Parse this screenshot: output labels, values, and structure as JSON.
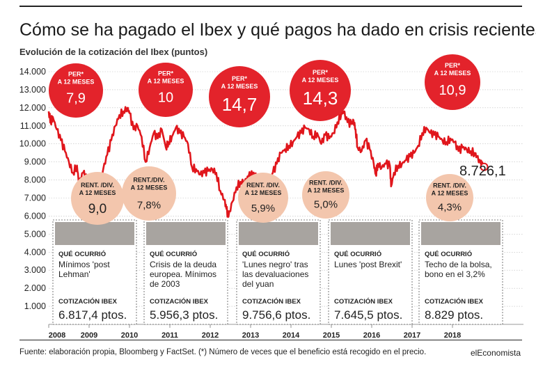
{
  "header": {
    "title": "Cómo se ha pagado el Ibex y qué pagos ha dado en crisis recientes",
    "subtitle": "Evolución de la cotización del Ibex (puntos)"
  },
  "footer": {
    "source": "Fuente: elaboración propia, Bloomberg y FactSet. (*) Número de veces que el beneficio está recogido en el precio.",
    "brand": "elEconomista"
  },
  "colors": {
    "line": "#e0161c",
    "per_bubble": "#e3232b",
    "yield_bubble": "#f3c6ad",
    "panel_header": "#a8a4a0"
  },
  "chart_data": {
    "type": "line",
    "title": "Evolución de la cotización del Ibex (puntos)",
    "ylim": [
      0,
      14000
    ],
    "y_ticks": [
      "14.000",
      "13.000",
      "12.000",
      "11.000",
      "10.000",
      "9.000",
      "8.000",
      "7.000",
      "6.000",
      "5.000",
      "4.000",
      "3.000",
      "2.000",
      "1.000"
    ],
    "y_tick_values": [
      14000,
      13000,
      12000,
      11000,
      10000,
      9000,
      8000,
      7000,
      6000,
      5000,
      4000,
      3000,
      2000,
      1000
    ],
    "x_ticks": [
      "2008",
      "2009",
      "2010",
      "2011",
      "2012",
      "2013",
      "2014",
      "2015",
      "2016",
      "2017",
      "2018"
    ],
    "x_tick_values": [
      2008.0,
      2009.0,
      2010.0,
      2011.0,
      2012.0,
      2013.0,
      2014.0,
      2015.0,
      2016.0,
      2017.0,
      2018.0
    ],
    "series": [
      {
        "values": [
          [
            2008.0,
            11800
          ],
          [
            2008.05,
            11200
          ],
          [
            2008.1,
            11500
          ],
          [
            2008.2,
            10800
          ],
          [
            2008.3,
            10200
          ],
          [
            2008.4,
            9600
          ],
          [
            2008.5,
            9000
          ],
          [
            2008.6,
            8400
          ],
          [
            2008.7,
            8800
          ],
          [
            2008.75,
            7800
          ],
          [
            2008.85,
            8400
          ],
          [
            2008.95,
            8000
          ],
          [
            2009.05,
            7600
          ],
          [
            2009.15,
            6817
          ],
          [
            2009.25,
            7800
          ],
          [
            2009.35,
            8600
          ],
          [
            2009.45,
            9400
          ],
          [
            2009.55,
            10200
          ],
          [
            2009.65,
            11000
          ],
          [
            2009.75,
            11600
          ],
          [
            2009.85,
            11800
          ],
          [
            2009.95,
            12000
          ],
          [
            2010.0,
            11700
          ],
          [
            2010.1,
            10800
          ],
          [
            2010.2,
            11000
          ],
          [
            2010.3,
            10400
          ],
          [
            2010.4,
            9000
          ],
          [
            2010.5,
            9800
          ],
          [
            2010.6,
            10600
          ],
          [
            2010.7,
            10300
          ],
          [
            2010.8,
            10800
          ],
          [
            2010.9,
            9800
          ],
          [
            2010.97,
            10100
          ],
          [
            2011.05,
            10400
          ],
          [
            2011.15,
            10900
          ],
          [
            2011.25,
            10600
          ],
          [
            2011.35,
            10400
          ],
          [
            2011.45,
            10000
          ],
          [
            2011.55,
            8700
          ],
          [
            2011.65,
            8600
          ],
          [
            2011.75,
            8300
          ],
          [
            2011.85,
            8400
          ],
          [
            2011.95,
            8500
          ],
          [
            2012.05,
            8600
          ],
          [
            2012.15,
            8400
          ],
          [
            2012.25,
            7400
          ],
          [
            2012.35,
            6900
          ],
          [
            2012.4,
            6400
          ],
          [
            2012.45,
            5956
          ],
          [
            2012.55,
            6800
          ],
          [
            2012.65,
            7600
          ],
          [
            2012.75,
            7900
          ],
          [
            2012.85,
            7900
          ],
          [
            2012.95,
            8200
          ],
          [
            2013.05,
            8300
          ],
          [
            2013.15,
            8200
          ],
          [
            2013.25,
            7900
          ],
          [
            2013.35,
            8100
          ],
          [
            2013.45,
            7800
          ],
          [
            2013.55,
            8400
          ],
          [
            2013.65,
            8900
          ],
          [
            2013.75,
            9500
          ],
          [
            2013.85,
            9700
          ],
          [
            2013.95,
            9900
          ],
          [
            2014.05,
            10100
          ],
          [
            2014.15,
            10400
          ],
          [
            2014.25,
            10600
          ],
          [
            2014.35,
            10900
          ],
          [
            2014.45,
            10800
          ],
          [
            2014.55,
            10400
          ],
          [
            2014.65,
            10600
          ],
          [
            2014.75,
            10000
          ],
          [
            2014.85,
            10500
          ],
          [
            2014.95,
            10300
          ],
          [
            2015.05,
            10600
          ],
          [
            2015.15,
            11200
          ],
          [
            2015.25,
            11700
          ],
          [
            2015.3,
            11800
          ],
          [
            2015.4,
            11200
          ],
          [
            2015.5,
            11100
          ],
          [
            2015.55,
            11300
          ],
          [
            2015.6,
            10800
          ],
          [
            2015.65,
            9800
          ],
          [
            2015.75,
            9600
          ],
          [
            2015.85,
            10200
          ],
          [
            2015.95,
            9700
          ],
          [
            2016.05,
            8900
          ],
          [
            2016.1,
            8300
          ],
          [
            2016.15,
            8900
          ],
          [
            2016.25,
            8700
          ],
          [
            2016.35,
            8900
          ],
          [
            2016.45,
            8800
          ],
          [
            2016.48,
            7646
          ],
          [
            2016.55,
            8400
          ],
          [
            2016.65,
            8800
          ],
          [
            2016.75,
            8900
          ],
          [
            2016.85,
            9100
          ],
          [
            2016.95,
            9300
          ],
          [
            2017.05,
            9500
          ],
          [
            2017.15,
            9900
          ],
          [
            2017.25,
            10600
          ],
          [
            2017.35,
            10900
          ],
          [
            2017.45,
            10600
          ],
          [
            2017.55,
            10500
          ],
          [
            2017.65,
            10400
          ],
          [
            2017.75,
            10200
          ],
          [
            2017.85,
            10100
          ],
          [
            2017.95,
            10300
          ],
          [
            2018.05,
            10100
          ],
          [
            2018.15,
            9600
          ],
          [
            2018.25,
            9800
          ],
          [
            2018.35,
            9700
          ],
          [
            2018.45,
            9600
          ],
          [
            2018.55,
            9500
          ],
          [
            2018.6,
            9300
          ],
          [
            2018.7,
            8900
          ],
          [
            2018.75,
            8726
          ]
        ]
      }
    ],
    "end_value": "8.726,1",
    "per_bubbles": [
      {
        "label": "PER*\nA 12 MESES",
        "value": "7,9"
      },
      {
        "label": "PER*\nA 12 MESES",
        "value": "10"
      },
      {
        "label": "PER*\nA 12 MESES",
        "value": "14,7"
      },
      {
        "label": "PER*\nA 12 MESES",
        "value": "14,3"
      },
      {
        "label": "PER*\nA 12 MESES",
        "value": "10,9"
      }
    ],
    "yield_bubbles": [
      {
        "label": "RENT. /DIV.\nA 12 MESES",
        "value": "9,0"
      },
      {
        "label": "RENT./DIV.\nA 12 MESES",
        "value": "7,8%"
      },
      {
        "label": "RENT. /DIV.\nA 12 MESES",
        "value": "5,9%"
      },
      {
        "label": "RENT. /DIV.\nA 12 MESES",
        "value": "5,0%"
      },
      {
        "label": "RENT. /DIV.\nA 12 MESES",
        "value": "4,3%"
      }
    ],
    "panels": [
      {
        "heading": "QUÉ OCURRIÓ",
        "text": "Mínimos 'post\nLehman'",
        "price_heading": "COTIZACIÓN IBEX",
        "price": "6.817,4 ptos."
      },
      {
        "heading": "QUÉ OCURRIÓ",
        "text": "Crisis de la deuda\neuropea. Mínimos\nde 2003",
        "price_heading": "COTIZACIÓN IBEX",
        "price": "5.956,3 ptos."
      },
      {
        "heading": "QUÉ OCURRIÓ",
        "text": "'Lunes negro' tras\nlas devaluaciones\ndel yuan",
        "price_heading": "COTIZACIÓN IBEX",
        "price": "9.756,6 ptos."
      },
      {
        "heading": "QUÉ OCURRIÓ",
        "text": "Lunes 'post Brexit'",
        "price_heading": "COTIZACIÓN IBEX",
        "price": "7.645,5 ptos."
      },
      {
        "heading": "QUÉ OCURRIÓ",
        "text": "Techo de la bolsa,\nbono en el 3,2%",
        "price_heading": "COTIZACIÓN IBEX",
        "price": "8.829 ptos."
      }
    ]
  }
}
